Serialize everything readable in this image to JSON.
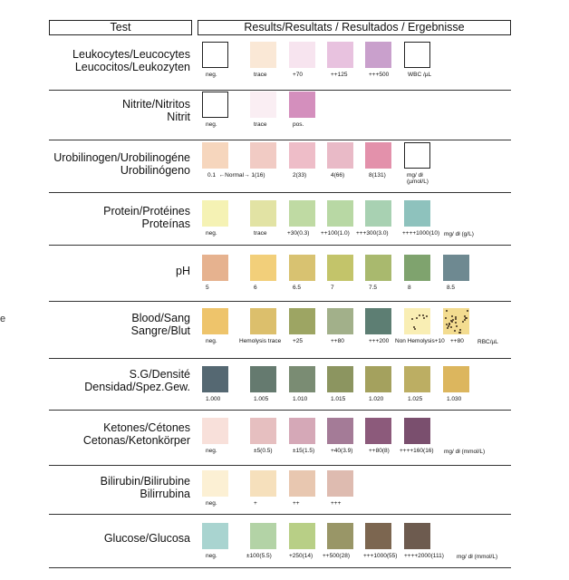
{
  "header": {
    "test": "Test",
    "results": "Results/Resultats / Resultados / Ergebnisse"
  },
  "left_fragment": "e",
  "rows": [
    {
      "label1": "Leukocytes/Leucocytes",
      "label2": "Leucocitos/Leukozyten",
      "unit": "",
      "pads": [
        {
          "color": "#ffffff",
          "outlined": true,
          "cap": "neg."
        },
        {
          "color": "#fae8d6",
          "cap": "trace"
        },
        {
          "color": "#f7e4ef",
          "cap": "+70"
        },
        {
          "color": "#e8c2df",
          "cap": "++125"
        },
        {
          "color": "#c9a0cc",
          "cap": "+++500"
        },
        {
          "color": "#ffffff",
          "outlined": true,
          "cap": "WBC /µL"
        }
      ]
    },
    {
      "label1": "Nitrite/Nitritos",
      "label2": "Nitrit",
      "unit": "",
      "pads": [
        {
          "color": "#ffffff",
          "outlined": true,
          "cap": "neg."
        },
        {
          "color": "#faeef3",
          "cap": "trace"
        },
        {
          "color": "#d48fbd",
          "cap": "pos."
        }
      ]
    },
    {
      "label1": "Urobilinogen/Urobilinogéne",
      "label2": "Urobilinógeno",
      "unit": "",
      "pads": [
        {
          "color": "#f6d6bd",
          "cap": "0.1  ←Normal→ 1(16)"
        },
        {
          "color": "#f1cbc4",
          "cap": ""
        },
        {
          "color": "#eebdc8",
          "cap": "2(33)"
        },
        {
          "color": "#e9bac7",
          "cap": "4(66)"
        },
        {
          "color": "#e391ab",
          "cap": "8(131)"
        },
        {
          "color": "#ffffff",
          "outlined": true,
          "cap": "mg/ dł\n(µmol/L)"
        }
      ]
    },
    {
      "label1": "Protein/Protéines",
      "label2": "Proteínas",
      "unit": "mg/ dł (g/L)",
      "pads": [
        {
          "color": "#f5f2b4",
          "cap": "neg."
        },
        {
          "color": "#e2e3a4",
          "cap": "trace"
        },
        {
          "color": "#bfdaa3",
          "cap": "+30(0.3)"
        },
        {
          "color": "#b8d8a4",
          "cap": "++100(1.0)"
        },
        {
          "color": "#a8d1b2",
          "cap": "+++300(3.0)"
        },
        {
          "color": "#8ec2bd",
          "cap": "++++1000(10)"
        }
      ]
    },
    {
      "label1": "pH",
      "label2": "",
      "unit": "",
      "pads": [
        {
          "color": "#e6b28f",
          "cap": "5"
        },
        {
          "color": "#f2cf7a",
          "cap": "6"
        },
        {
          "color": "#d8c271",
          "cap": "6.5"
        },
        {
          "color": "#c3c46a",
          "cap": "7"
        },
        {
          "color": "#a9b96e",
          "cap": "7.5"
        },
        {
          "color": "#7fa36e",
          "cap": "8"
        },
        {
          "color": "#6e8991",
          "cap": "8.5"
        }
      ]
    },
    {
      "label1": "Blood/Sang",
      "label2": "Sangre/Blut",
      "unit": "RBC/µL",
      "pads": [
        {
          "color": "#eec46b",
          "cap": "neg."
        },
        {
          "color": "#dcbf6c",
          "cap": "Hemolysis trace"
        },
        {
          "color": "#9da563",
          "cap": "+25"
        },
        {
          "color": "#a2b08a",
          "cap": "++80"
        },
        {
          "color": "#5d7e73",
          "cap": "+++200"
        },
        {
          "color": "#f9eeb4",
          "cap": "Non Hemolysis+10",
          "dots": "sparse"
        },
        {
          "color": "#f3dc90",
          "cap": "++80",
          "dots": "dense"
        }
      ]
    },
    {
      "label1": "S.G/Densité",
      "label2": "Densidad/Spez.Gew.",
      "unit": "",
      "pads": [
        {
          "color": "#556872",
          "cap": "1.000"
        },
        {
          "color": "#657a6f",
          "cap": "1.005"
        },
        {
          "color": "#7a8c73",
          "cap": "1.010"
        },
        {
          "color": "#8c9560",
          "cap": "1.015"
        },
        {
          "color": "#a4a15e",
          "cap": "1.020"
        },
        {
          "color": "#bcae63",
          "cap": "1.025"
        },
        {
          "color": "#dcb65e",
          "cap": "1.030"
        }
      ]
    },
    {
      "label1": "Ketones/Cétones",
      "label2": "Cetonas/Ketonkörper",
      "unit": "mg/ dł (mmol/L)",
      "pads": [
        {
          "color": "#f8e0da",
          "cap": "neg."
        },
        {
          "color": "#e6bfc0",
          "cap": "±5(0.5)"
        },
        {
          "color": "#d5a8b7",
          "cap": "±15(1.5)"
        },
        {
          "color": "#a47b97",
          "cap": "+40(3.9)"
        },
        {
          "color": "#8c5a7b",
          "cap": "++80(8)"
        },
        {
          "color": "#7a4f6e",
          "cap": "++++160(16)"
        }
      ]
    },
    {
      "label1": "Bilirubin/Bilirubine",
      "label2": "Bilirrubina",
      "unit": "",
      "pads": [
        {
          "color": "#fcf0d4",
          "cap": "neg."
        },
        {
          "color": "#f6e0bc",
          "cap": "+"
        },
        {
          "color": "#e8c7b0",
          "cap": "++"
        },
        {
          "color": "#debbb0",
          "cap": "+++"
        }
      ]
    },
    {
      "label1": "Glucose/Glucosa",
      "label2": "",
      "unit": "mg/ dł (mmol/L)",
      "pads": [
        {
          "color": "#a9d4d0",
          "cap": "neg."
        },
        {
          "color": "#b3d3a6",
          "cap": "±100(5.5)"
        },
        {
          "color": "#b8cf86",
          "cap": "+250(14)"
        },
        {
          "color": "#999667",
          "cap": "++500(28)"
        },
        {
          "color": "#7c6650",
          "cap": "+++1000(55)"
        },
        {
          "color": "#6d5b4f",
          "cap": "++++2000(111)"
        }
      ]
    }
  ]
}
